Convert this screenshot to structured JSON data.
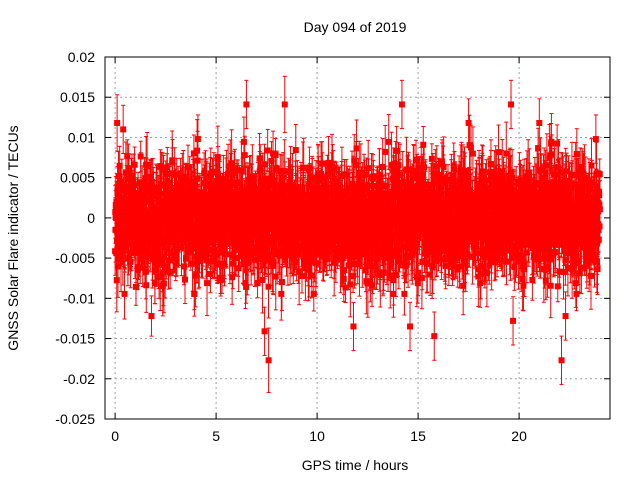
{
  "chart_data": {
    "type": "scatter",
    "title": "Day 094 of 2019",
    "xlabel": "GPS time / hours",
    "ylabel": "GNSS Solar Flare indicator / TECUs",
    "xlim": [
      -0.5,
      24.5
    ],
    "ylim": [
      -0.025,
      0.02
    ],
    "xticks": [
      0,
      5,
      10,
      15,
      20
    ],
    "xtick_labels": [
      "0",
      "5",
      "10",
      "15",
      "20"
    ],
    "yticks": [
      -0.025,
      -0.02,
      -0.015,
      -0.01,
      -0.005,
      0,
      0.005,
      0.01,
      0.015,
      0.02
    ],
    "ytick_labels": [
      "-0.025",
      "-0.02",
      "-0.015",
      "-0.01",
      "-0.005",
      "0",
      "0.005",
      "0.01",
      "0.015",
      "0.02"
    ],
    "grid": true,
    "series": [
      {
        "name": "GNSS Solar Flare indicator",
        "color": "#ff0000",
        "marker": "square",
        "error_bars": true,
        "x_range": [
          0,
          24
        ],
        "typical_range": [
          -0.007,
          0.007
        ],
        "typical_error": 0.003,
        "notable_points": [
          {
            "x": 0.1,
            "y": 0.0118,
            "err": 0.0035
          },
          {
            "x": 0.4,
            "y": 0.011,
            "err": 0.003
          },
          {
            "x": 1.8,
            "y": -0.0122,
            "err": 0.0025
          },
          {
            "x": 4.1,
            "y": 0.0098,
            "err": 0.003
          },
          {
            "x": 6.5,
            "y": 0.0141,
            "err": 0.003
          },
          {
            "x": 7.4,
            "y": -0.0141,
            "err": 0.003
          },
          {
            "x": 7.6,
            "y": -0.0177,
            "err": 0.004
          },
          {
            "x": 8.4,
            "y": 0.0141,
            "err": 0.0035
          },
          {
            "x": 11.8,
            "y": -0.0135,
            "err": 0.003
          },
          {
            "x": 14.2,
            "y": 0.0141,
            "err": 0.003
          },
          {
            "x": 14.6,
            "y": -0.0135,
            "err": 0.003
          },
          {
            "x": 15.8,
            "y": -0.0147,
            "err": 0.003
          },
          {
            "x": 17.5,
            "y": 0.0118,
            "err": 0.003
          },
          {
            "x": 19.6,
            "y": 0.0141,
            "err": 0.003
          },
          {
            "x": 19.7,
            "y": -0.0128,
            "err": 0.003
          },
          {
            "x": 21.0,
            "y": 0.0118,
            "err": 0.003
          },
          {
            "x": 22.1,
            "y": -0.0177,
            "err": 0.003
          },
          {
            "x": 22.3,
            "y": -0.0122,
            "err": 0.003
          },
          {
            "x": 23.8,
            "y": 0.0098,
            "err": 0.003
          }
        ]
      }
    ]
  }
}
